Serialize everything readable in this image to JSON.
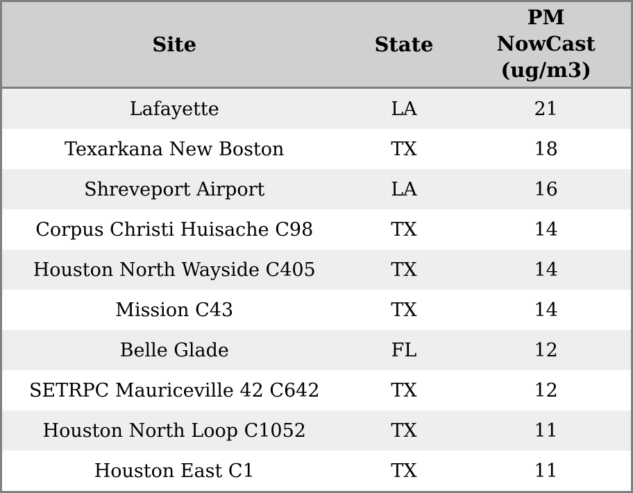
{
  "theme": {
    "border_color": "#7f7f7f",
    "header_bg": "#d0d0d0",
    "row_alt_bg": "#eeeeee",
    "row_bg": "#ffffff",
    "text_color": "#000000"
  },
  "chart_data": {
    "type": "table",
    "columns": [
      {
        "key": "site",
        "label": "Site"
      },
      {
        "key": "state",
        "label": "State"
      },
      {
        "key": "pm_nowcast",
        "label": "PM NowCast (ug/m3)",
        "label_lines": [
          "PM",
          "NowCast",
          "(ug/m3)"
        ]
      }
    ],
    "rows": [
      {
        "site": "Lafayette",
        "state": "LA",
        "pm_nowcast": "21"
      },
      {
        "site": "Texarkana New Boston",
        "state": "TX",
        "pm_nowcast": "18"
      },
      {
        "site": "Shreveport Airport",
        "state": "LA",
        "pm_nowcast": "16"
      },
      {
        "site": "Corpus Christi Huisache C98",
        "state": "TX",
        "pm_nowcast": "14"
      },
      {
        "site": "Houston North Wayside C405",
        "state": "TX",
        "pm_nowcast": "14"
      },
      {
        "site": "Mission C43",
        "state": "TX",
        "pm_nowcast": "14"
      },
      {
        "site": "Belle Glade",
        "state": "FL",
        "pm_nowcast": "12"
      },
      {
        "site": "SETRPC Mauriceville 42 C642",
        "state": "TX",
        "pm_nowcast": "12"
      },
      {
        "site": "Houston North Loop C1052",
        "state": "TX",
        "pm_nowcast": "11"
      },
      {
        "site": "Houston East C1",
        "state": "TX",
        "pm_nowcast": "11"
      }
    ]
  }
}
